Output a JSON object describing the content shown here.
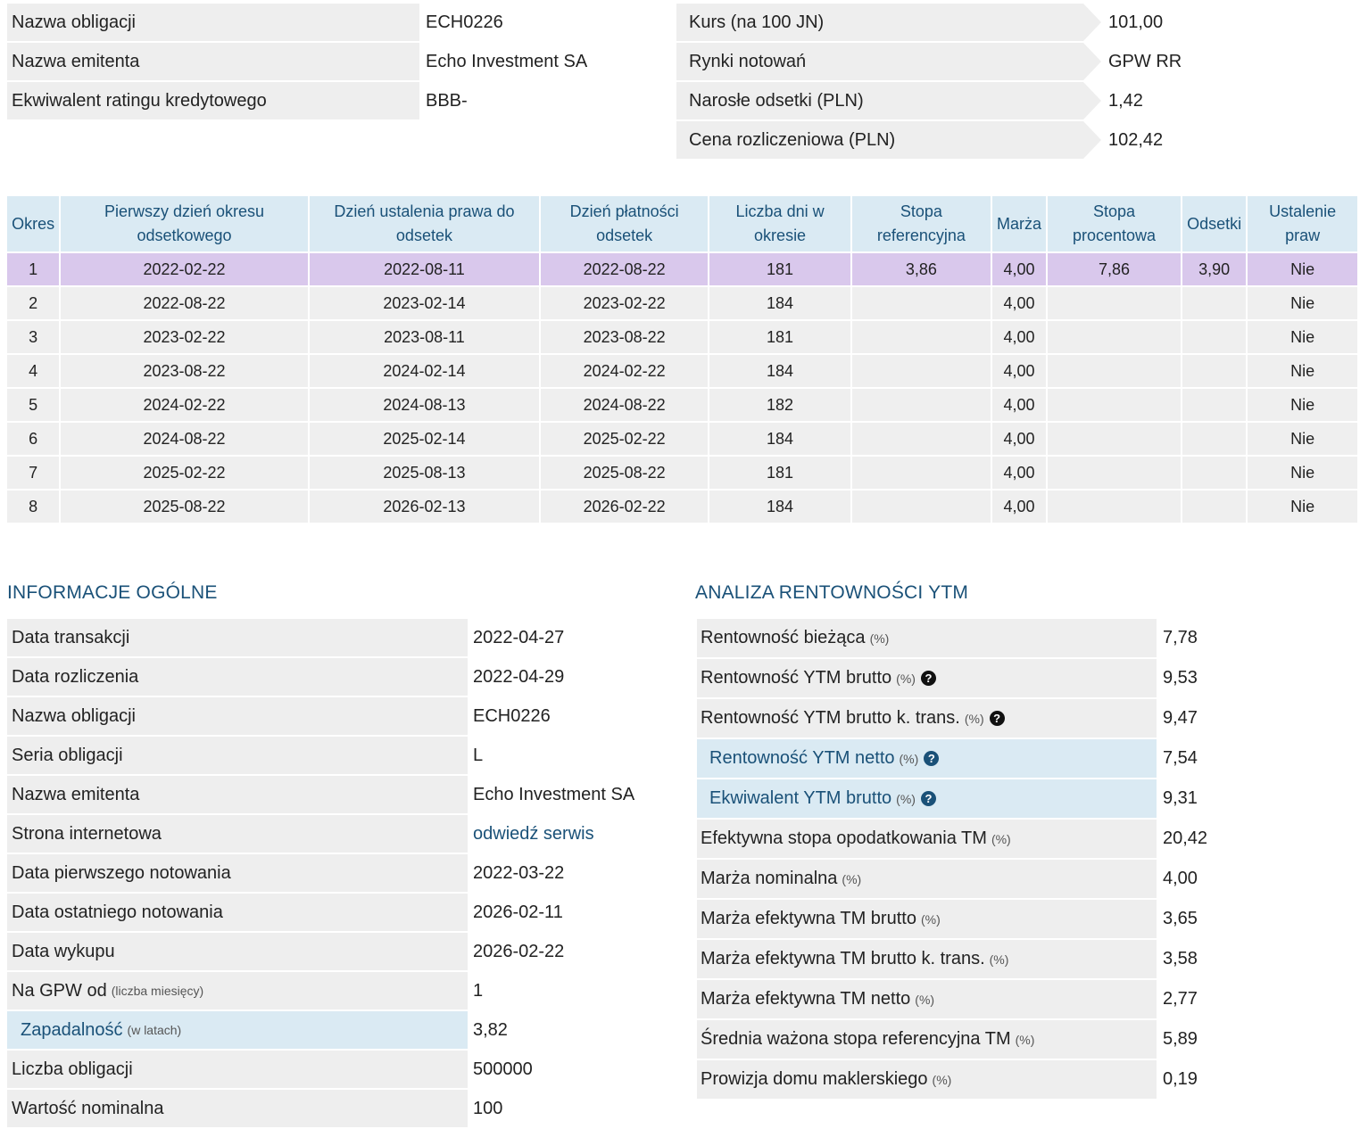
{
  "summary_left": [
    {
      "label": "Nazwa obligacji",
      "value": "ECH0226"
    },
    {
      "label": "Nazwa emitenta",
      "value": "Echo Investment SA"
    },
    {
      "label": "Ekwiwalent ratingu kredytowego",
      "value": "BBB-"
    }
  ],
  "summary_right": [
    {
      "label": "Kurs (na 100 JN)",
      "value": "101,00"
    },
    {
      "label": "Rynki notowań",
      "value": "GPW RR"
    },
    {
      "label": "Narosłe odsetki (PLN)",
      "value": "1,42"
    },
    {
      "label": "Cena rozliczeniowa (PLN)",
      "value": "102,42"
    }
  ],
  "coupon_table": {
    "headers": [
      "Okres",
      "Pierwszy dzień okresu odsetkowego",
      "Dzień ustalenia prawa do odsetek",
      "Dzień płatności odsetek",
      "Liczba dni w okresie",
      "Stopa referencyjna",
      "Marża",
      "Stopa procentowa",
      "Odsetki",
      "Ustalenie praw"
    ],
    "rows": [
      [
        "1",
        "2022-02-22",
        "2022-08-11",
        "2022-08-22",
        "181",
        "3,86",
        "4,00",
        "7,86",
        "3,90",
        "Nie"
      ],
      [
        "2",
        "2022-08-22",
        "2023-02-14",
        "2023-02-22",
        "184",
        "",
        "4,00",
        "",
        "",
        "Nie"
      ],
      [
        "3",
        "2023-02-22",
        "2023-08-11",
        "2023-08-22",
        "181",
        "",
        "4,00",
        "",
        "",
        "Nie"
      ],
      [
        "4",
        "2023-08-22",
        "2024-02-14",
        "2024-02-22",
        "184",
        "",
        "4,00",
        "",
        "",
        "Nie"
      ],
      [
        "5",
        "2024-02-22",
        "2024-08-13",
        "2024-08-22",
        "182",
        "",
        "4,00",
        "",
        "",
        "Nie"
      ],
      [
        "6",
        "2024-08-22",
        "2025-02-14",
        "2025-02-22",
        "184",
        "",
        "4,00",
        "",
        "",
        "Nie"
      ],
      [
        "7",
        "2025-02-22",
        "2025-08-13",
        "2025-08-22",
        "181",
        "",
        "4,00",
        "",
        "",
        "Nie"
      ],
      [
        "8",
        "2025-08-22",
        "2026-02-13",
        "2026-02-22",
        "184",
        "",
        "4,00",
        "",
        "",
        "Nie"
      ]
    ]
  },
  "general_info": {
    "title": "INFORMACJE OGÓLNE",
    "rows": [
      {
        "label": "Data transakcji",
        "unit": "",
        "value": "2022-04-27"
      },
      {
        "label": "Data rozliczenia",
        "unit": "",
        "value": "2022-04-29"
      },
      {
        "label": "Nazwa obligacji",
        "unit": "",
        "value": "ECH0226"
      },
      {
        "label": "Seria obligacji",
        "unit": "",
        "value": "L"
      },
      {
        "label": "Nazwa emitenta",
        "unit": "",
        "value": "Echo Investment SA"
      },
      {
        "label": "Strona internetowa",
        "unit": "",
        "value": "odwiedź serwis"
      },
      {
        "label": "Data pierwszego notowania",
        "unit": "",
        "value": "2022-03-22"
      },
      {
        "label": "Data ostatniego notowania",
        "unit": "",
        "value": "2026-02-11"
      },
      {
        "label": "Data wykupu",
        "unit": "",
        "value": "2026-02-22"
      },
      {
        "label": "Na GPW od",
        "unit": "(liczba miesięcy)",
        "value": "1"
      },
      {
        "label": "Zapadalność",
        "unit": "(w latach)",
        "value": "3,82"
      },
      {
        "label": "Liczba obligacji",
        "unit": "",
        "value": "500000"
      },
      {
        "label": "Wartość nominalna",
        "unit": "",
        "value": "100"
      }
    ]
  },
  "ytm_analysis": {
    "title": "ANALIZA RENTOWNOŚCI YTM",
    "help_glyph": "?",
    "rows": [
      {
        "label": "Rentowność bieżąca",
        "unit": "(%)",
        "value": "7,78"
      },
      {
        "label": "Rentowność YTM brutto",
        "unit": "(%)",
        "value": "9,53"
      },
      {
        "label": "Rentowność YTM brutto k. trans.",
        "unit": "(%)",
        "value": "9,47"
      },
      {
        "label": "Rentowność YTM netto",
        "unit": "(%)",
        "value": "7,54"
      },
      {
        "label": "Ekwiwalent YTM brutto",
        "unit": "(%)",
        "value": "9,31"
      },
      {
        "label": "Efektywna stopa opodatkowania TM",
        "unit": "(%)",
        "value": "20,42"
      },
      {
        "label": "Marża nominalna",
        "unit": "(%)",
        "value": "4,00"
      },
      {
        "label": "Marża efektywna TM brutto",
        "unit": "(%)",
        "value": "3,65"
      },
      {
        "label": "Marża efektywna TM brutto k. trans.",
        "unit": "(%)",
        "value": "3,58"
      },
      {
        "label": "Marża efektywna TM netto",
        "unit": "(%)",
        "value": "2,77"
      },
      {
        "label": "Średnia ważona stopa referencyjna TM",
        "unit": "(%)",
        "value": "5,89"
      },
      {
        "label": "Prowizja domu maklerskiego",
        "unit": "(%)",
        "value": "0,19"
      }
    ]
  }
}
